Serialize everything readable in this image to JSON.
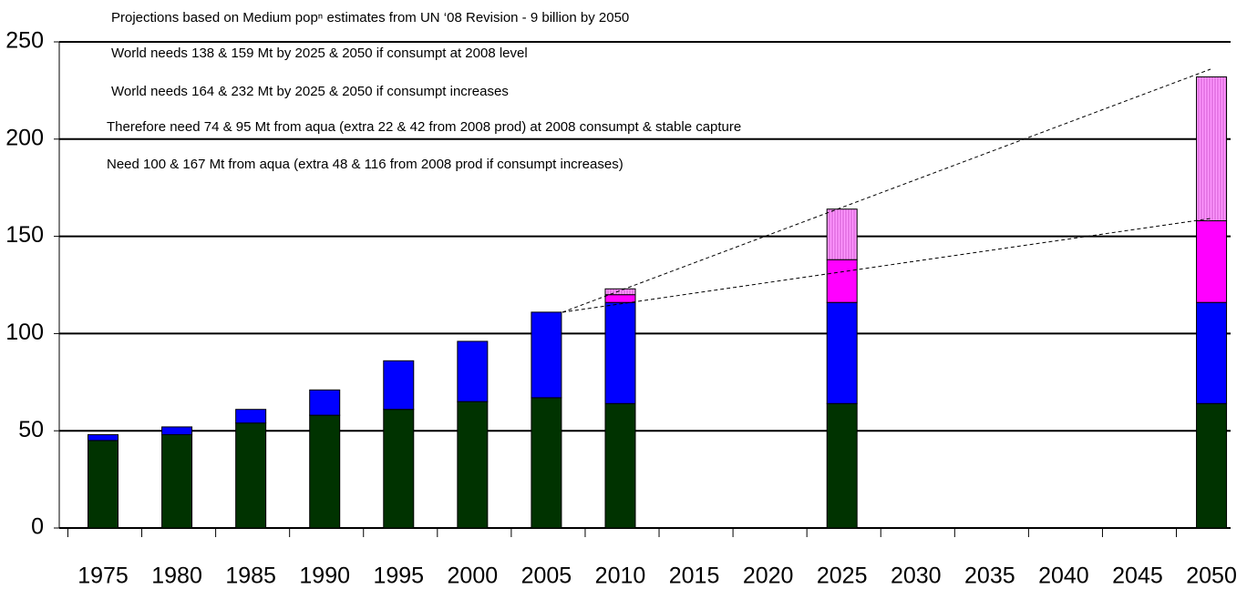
{
  "chart_data": {
    "type": "stacked_bar",
    "annotations": [
      "Projections based on Medium popⁿ estimates from UN ‘08 Revision - 9 billion by 2050",
      "World needs 138 & 159 Mt by 2025 & 2050 if consumpt at 2008 level",
      "World needs 164 & 232 Mt by 2025 & 2050 if consumpt increases",
      "Therefore need 74 & 95 Mt from aqua (extra 22 & 42 from 2008 prod) at 2008 consumpt & stable capture",
      "Need 100 & 167 Mt from aqua (extra 48 & 116 from 2008 prod if consumpt increases)"
    ],
    "categories": [
      "1975",
      "1980",
      "1985",
      "1990",
      "1995",
      "2000",
      "2005",
      "2010",
      "2015",
      "2020",
      "2025",
      "2030",
      "2035",
      "2040",
      "2045",
      "2050"
    ],
    "series": [
      {
        "color": "#003300",
        "values": [
          45,
          48,
          54,
          58,
          61,
          65,
          67,
          64,
          null,
          null,
          64,
          null,
          null,
          null,
          null,
          64
        ]
      },
      {
        "color": "#0000ff",
        "values": [
          3,
          4,
          7,
          13,
          25,
          31,
          44,
          52,
          null,
          null,
          52,
          null,
          null,
          null,
          null,
          52
        ]
      },
      {
        "color": "#ff00ff",
        "values": [
          null,
          null,
          null,
          null,
          null,
          null,
          null,
          4,
          null,
          null,
          22,
          null,
          null,
          null,
          null,
          42
        ]
      },
      {
        "color": "#ff99ff",
        "hatch": true,
        "values": [
          null,
          null,
          null,
          null,
          null,
          null,
          null,
          3,
          null,
          null,
          26,
          null,
          null,
          null,
          null,
          74
        ]
      }
    ],
    "ylim": [
      0,
      250
    ],
    "yticks": [
      0,
      50,
      100,
      150,
      200,
      250
    ],
    "grid": true
  }
}
